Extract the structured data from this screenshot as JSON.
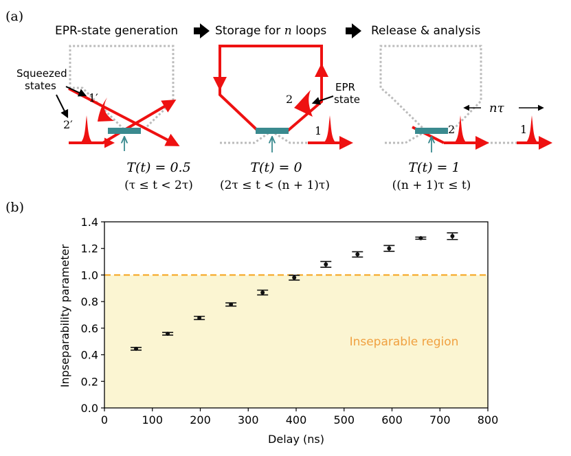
{
  "panel_a": {
    "label": "(a)",
    "stages": [
      {
        "title": "EPR-state generation",
        "transmission": "T(t) = 0.5",
        "time_range": "(τ ≤ t < 2τ)"
      },
      {
        "title_prefix": "Storage for",
        "title_var": "n",
        "title_suffix": "loops",
        "transmission": "T(t) = 0",
        "time_range": "(2τ ≤ t < (n + 1)τ)"
      },
      {
        "title": "Release & analysis",
        "transmission": "T(t) = 1",
        "time_range": "((n + 1)τ ≤ t)"
      }
    ],
    "labels": {
      "squeezed_line1": "Squeezed",
      "squeezed_line2": "states",
      "mode1_prime": "1′",
      "mode2_prime": "2′",
      "epr_line1": "EPR",
      "epr_line2": "state",
      "mode1": "1",
      "mode2": "2",
      "delay_label": "nτ"
    },
    "colors": {
      "beam": "#ee1111",
      "idle_path": "#bbbbbb",
      "splitter": "#3a8a8f",
      "arrow": "#000000"
    }
  },
  "panel_b": {
    "label": "(b)",
    "region_label": "Inseparable region",
    "colors": {
      "region_fill": "#fbf5d2",
      "threshold_line": "#f5a623",
      "region_text": "#f0a040",
      "points": "#111111"
    }
  },
  "chart_data": {
    "type": "scatter",
    "title": "",
    "xlabel": "Delay (ns)",
    "ylabel": "Inpseparability parameter",
    "xlim": [
      0,
      800
    ],
    "ylim": [
      0,
      1.4
    ],
    "xticks": [
      0,
      100,
      200,
      300,
      400,
      500,
      600,
      700,
      800
    ],
    "yticks": [
      "0.0",
      "0.2",
      "0.4",
      "0.6",
      "0.8",
      "1.0",
      "1.2",
      "1.4"
    ],
    "threshold": 1.0,
    "series": [
      {
        "name": "Inseparability",
        "x": [
          66,
          132,
          198,
          264,
          330,
          396,
          462,
          528,
          594,
          660,
          726
        ],
        "y": [
          0.445,
          0.558,
          0.677,
          0.778,
          0.868,
          0.98,
          1.08,
          1.155,
          1.2,
          1.277,
          1.292
        ],
        "err": [
          0.01,
          0.01,
          0.012,
          0.012,
          0.018,
          0.018,
          0.022,
          0.02,
          0.022,
          0.008,
          0.025
        ]
      }
    ]
  }
}
